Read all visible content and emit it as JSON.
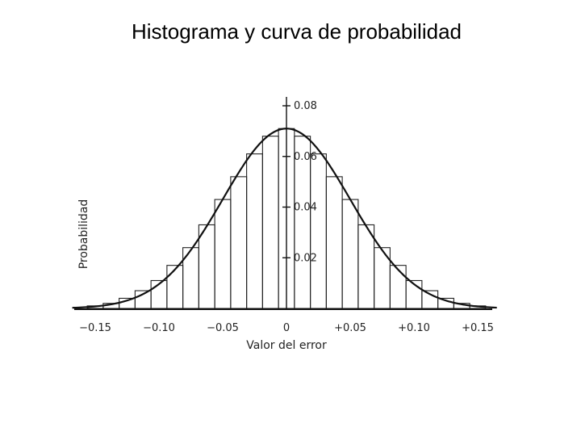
{
  "title": "Histograma y curva de probabilidad",
  "chart_data": {
    "type": "bar",
    "title": "Histograma y curva de probabilidad",
    "xlabel": "Valor del error",
    "ylabel": "Probabilidad",
    "xlim": [
      -0.15,
      0.15
    ],
    "ylim": [
      0,
      0.08
    ],
    "bin_width": 0.0125,
    "x_ticks": [
      -0.15,
      -0.1,
      -0.05,
      0,
      0.05,
      0.1,
      0.15
    ],
    "x_tick_labels": [
      "−0.15",
      "−0.10",
      "−0.05",
      "0",
      "+0.05",
      "+0.10",
      "+0.15"
    ],
    "y_ticks": [
      0.02,
      0.04,
      0.06,
      0.08
    ],
    "y_tick_labels": [
      "0.02",
      "0.04",
      "0.06",
      "0.08"
    ],
    "bins": [
      {
        "x": -0.15,
        "value": 0.001
      },
      {
        "x": -0.1375,
        "value": 0.002
      },
      {
        "x": -0.125,
        "value": 0.004
      },
      {
        "x": -0.1125,
        "value": 0.007
      },
      {
        "x": -0.1,
        "value": 0.011
      },
      {
        "x": -0.0875,
        "value": 0.017
      },
      {
        "x": -0.075,
        "value": 0.024
      },
      {
        "x": -0.0625,
        "value": 0.033
      },
      {
        "x": -0.05,
        "value": 0.043
      },
      {
        "x": -0.0375,
        "value": 0.052
      },
      {
        "x": -0.025,
        "value": 0.061
      },
      {
        "x": -0.0125,
        "value": 0.068
      },
      {
        "x": 0.0,
        "value": 0.071
      },
      {
        "x": 0.0125,
        "value": 0.068
      },
      {
        "x": 0.025,
        "value": 0.061
      },
      {
        "x": 0.0375,
        "value": 0.052
      },
      {
        "x": 0.05,
        "value": 0.043
      },
      {
        "x": 0.0625,
        "value": 0.033
      },
      {
        "x": 0.075,
        "value": 0.024
      },
      {
        "x": 0.0875,
        "value": 0.017
      },
      {
        "x": 0.1,
        "value": 0.011
      },
      {
        "x": 0.1125,
        "value": 0.007
      },
      {
        "x": 0.125,
        "value": 0.004
      },
      {
        "x": 0.1375,
        "value": 0.002
      },
      {
        "x": 0.15,
        "value": 0.001
      }
    ],
    "curve": {
      "type": "normal",
      "mean": 0,
      "std": 0.05
    },
    "grid": false,
    "colors": {
      "line": "#111111",
      "bars": "#222222"
    }
  }
}
